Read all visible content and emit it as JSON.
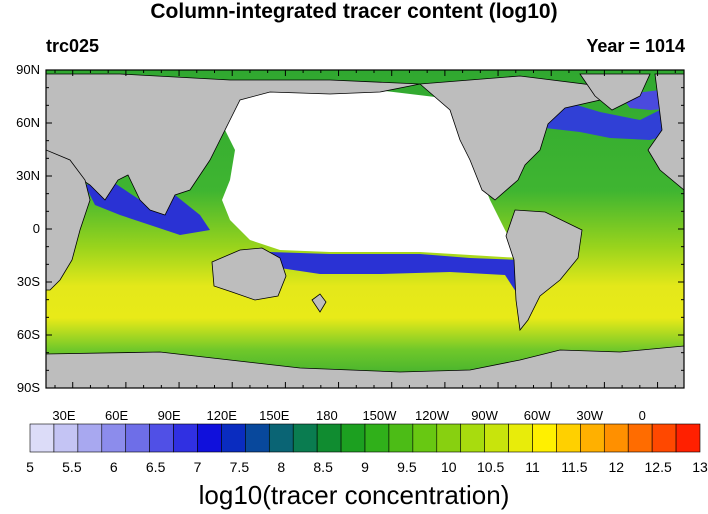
{
  "header": {
    "title": "Column-integrated tracer content (log10)",
    "left_label": "trc025",
    "right_label": "Year = 1014"
  },
  "map": {
    "lat_labels": [
      "90N",
      "60N",
      "30N",
      "0",
      "30S",
      "60S",
      "90S"
    ],
    "lon_labels": [
      "30E",
      "60E",
      "90E",
      "120E",
      "150E",
      "180",
      "150W",
      "120W",
      "90W",
      "60W",
      "30W",
      "0"
    ],
    "colors": {
      "land": "#bdbdbd",
      "no_data": "#ffffff",
      "low": "#3a3ad8",
      "mid": "#30b030",
      "high": "#e8e820"
    }
  },
  "colorbar": {
    "title": "log10(tracer concentration)",
    "tick_labels": [
      "5",
      "5.5",
      "6",
      "6.5",
      "7",
      "7.5",
      "8",
      "8.5",
      "9",
      "9.5",
      "10",
      "10.5",
      "11",
      "11.5",
      "12",
      "12.5",
      "13"
    ],
    "colors": [
      "#dcdcf8",
      "#c4c4f4",
      "#a8a8f0",
      "#8c8cec",
      "#6e6ee8",
      "#5050e6",
      "#3030e2",
      "#1010dc",
      "#0a2cc0",
      "#08489c",
      "#0a6474",
      "#0a7c50",
      "#108c30",
      "#1ca020",
      "#30b01a",
      "#4cbc16",
      "#68c812",
      "#88d010",
      "#a8dc0e",
      "#c8e40c",
      "#e8ec0a",
      "#fff000",
      "#ffd000",
      "#ffb000",
      "#ff9000",
      "#ff6c00",
      "#ff4800",
      "#ff2000"
    ]
  }
}
